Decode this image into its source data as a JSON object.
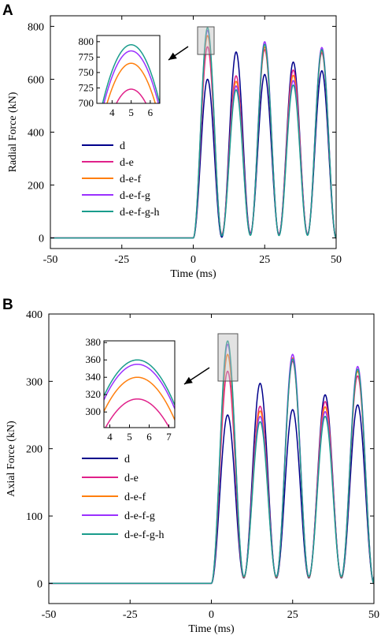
{
  "chart_data": [
    {
      "panel": "A",
      "type": "line",
      "xlabel": "Time (ms)",
      "ylabel": "Radial Force (kN)",
      "xlim": [
        -50,
        50
      ],
      "ylim": [
        -40,
        840
      ],
      "xticks": [
        -50,
        -25,
        0,
        25,
        50
      ],
      "yticks": [
        0,
        200,
        400,
        600,
        800
      ],
      "start_time": 0,
      "period": 10,
      "legend_position": "left, middle",
      "series": [
        {
          "name": "d",
          "color": "#00008b",
          "peaks": [
            600,
            703,
            618,
            665,
            632
          ],
          "troughs": [
            3,
            18,
            15,
            15
          ]
        },
        {
          "name": "d-e",
          "color": "#e0218a",
          "peaks": [
            723,
            613,
            712,
            635,
            700
          ],
          "troughs": [
            14,
            15,
            13,
            14
          ]
        },
        {
          "name": "d-e-f",
          "color": "#ff7f0e",
          "peaks": [
            765,
            592,
            722,
            615,
            708
          ],
          "troughs": [
            12,
            13,
            11,
            13
          ]
        },
        {
          "name": "d-e-f-g",
          "color": "#9b30ff",
          "peaks": [
            785,
            575,
            742,
            595,
            720
          ],
          "troughs": [
            10,
            12,
            10,
            12
          ]
        },
        {
          "name": "d-e-f-g-h",
          "color": "#1a9c8c",
          "peaks": [
            795,
            560,
            732,
            578,
            712
          ],
          "troughs": [
            8,
            10,
            9,
            10
          ]
        }
      ],
      "inset": {
        "xlim": [
          3.2,
          6.5
        ],
        "ylim": [
          700,
          810
        ],
        "xticks": [
          4,
          5,
          6
        ],
        "yticks": [
          700,
          725,
          750,
          775,
          800
        ],
        "center": 5,
        "half_width": 1.3
      }
    },
    {
      "panel": "B",
      "type": "line",
      "xlabel": "Time (ms)",
      "ylabel": "Axial Force (kN)",
      "xlim": [
        -50,
        50
      ],
      "ylim": [
        -30,
        400
      ],
      "xticks": [
        -50,
        -25,
        0,
        25,
        50
      ],
      "yticks": [
        0,
        100,
        200,
        300,
        400
      ],
      "start_time": 0,
      "period": 10,
      "legend_position": "left, middle",
      "series": [
        {
          "name": "d",
          "color": "#00008b",
          "peaks": [
            250,
            297,
            258,
            280,
            265
          ],
          "troughs": [
            8,
            8,
            8,
            8
          ]
        },
        {
          "name": "d-e",
          "color": "#e0218a",
          "peaks": [
            315,
            263,
            330,
            270,
            308
          ],
          "troughs": [
            9,
            9,
            9,
            9
          ]
        },
        {
          "name": "d-e-f",
          "color": "#ff7f0e",
          "peaks": [
            340,
            256,
            335,
            262,
            315
          ],
          "troughs": [
            9,
            9,
            9,
            9
          ]
        },
        {
          "name": "d-e-f-g",
          "color": "#9b30ff",
          "peaks": [
            355,
            248,
            340,
            255,
            322
          ],
          "troughs": [
            10,
            10,
            10,
            10
          ]
        },
        {
          "name": "d-e-f-g-h",
          "color": "#1a9c8c",
          "peaks": [
            360,
            240,
            333,
            248,
            318
          ],
          "troughs": [
            10,
            10,
            10,
            10
          ]
        }
      ],
      "inset": {
        "xlim": [
          3.7,
          7.3
        ],
        "ylim": [
          282,
          382
        ],
        "xticks": [
          4,
          5,
          6,
          7
        ],
        "yticks": [
          300,
          320,
          340,
          360,
          380
        ],
        "center": 5.4,
        "half_width": 1.5
      }
    }
  ]
}
